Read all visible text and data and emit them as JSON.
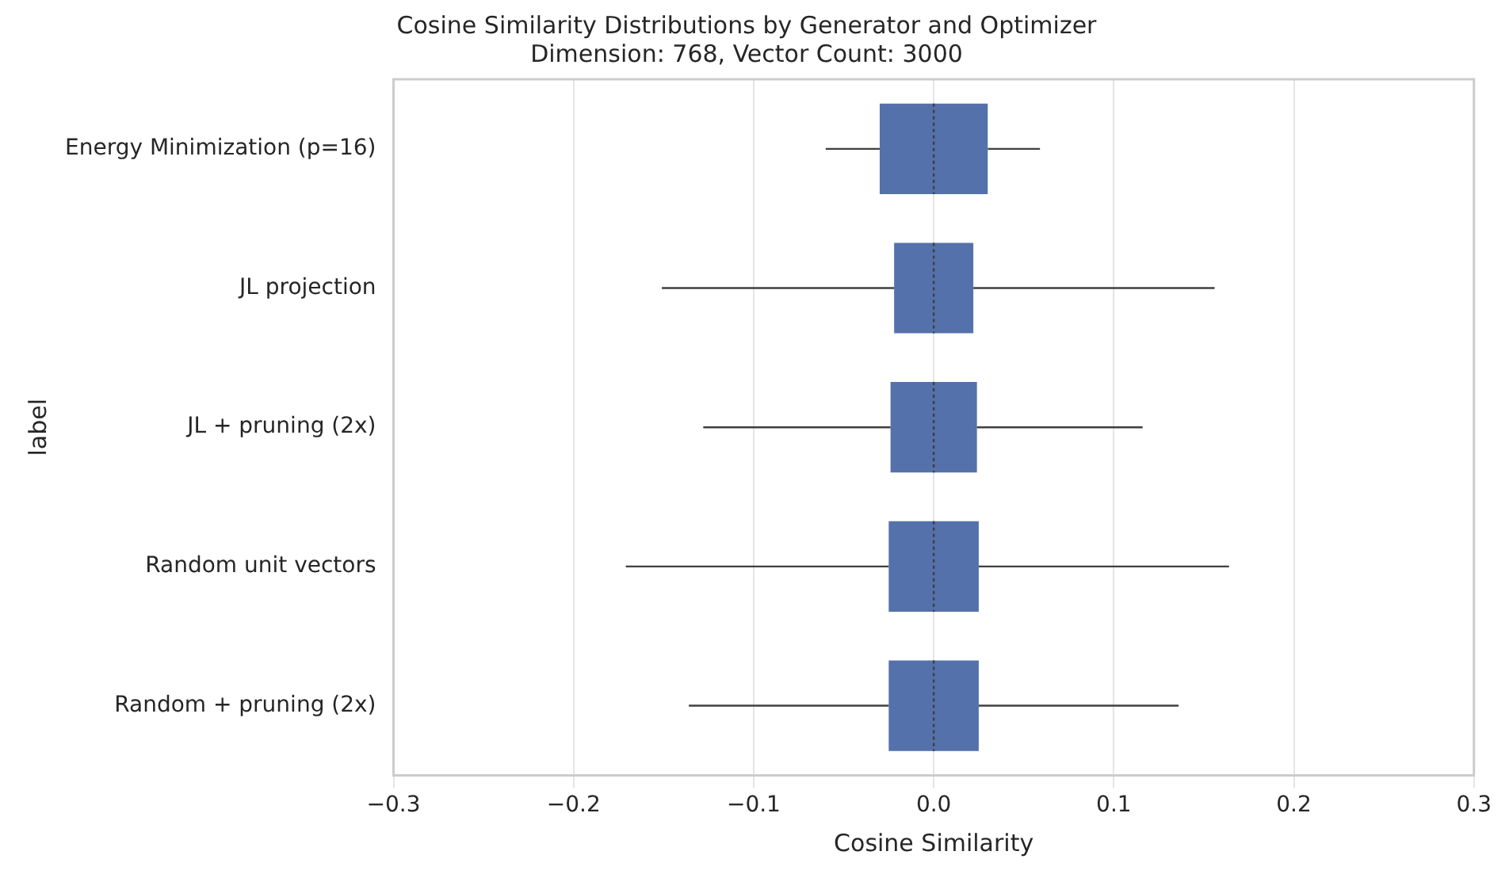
{
  "chart_data": {
    "type": "box",
    "orientation": "horizontal",
    "title": "Cosine Similarity Distributions by Generator and Optimizer",
    "subtitle": "Dimension: 768, Vector Count: 3000",
    "xlabel": "Cosine Similarity",
    "ylabel": "label",
    "categories": [
      "Energy Minimization (p=16)",
      "JL projection",
      "JL + pruning (2x)",
      "Random unit vectors",
      "Random + pruning (2x)"
    ],
    "color": "#5471ab",
    "boxes": [
      {
        "low": -0.06,
        "q1": -0.03,
        "median": 0.0,
        "q3": 0.03,
        "high": 0.059
      },
      {
        "low": -0.151,
        "q1": -0.022,
        "median": 0.0,
        "q3": 0.022,
        "high": 0.156
      },
      {
        "low": -0.128,
        "q1": -0.024,
        "median": 0.0,
        "q3": 0.024,
        "high": 0.116
      },
      {
        "low": -0.171,
        "q1": -0.025,
        "median": 0.0,
        "q3": 0.025,
        "high": 0.164
      },
      {
        "low": -0.136,
        "q1": -0.025,
        "median": 0.0,
        "q3": 0.025,
        "high": 0.136
      }
    ],
    "xlim": [
      -0.3,
      0.3
    ],
    "xticks": [
      {
        "value": -0.3,
        "label": "−0.3"
      },
      {
        "value": -0.2,
        "label": "−0.2"
      },
      {
        "value": -0.1,
        "label": "−0.1"
      },
      {
        "value": 0,
        "label": "0.0"
      },
      {
        "value": 0.1,
        "label": "0.1"
      },
      {
        "value": 0.2,
        "label": "0.2"
      },
      {
        "value": 0.3,
        "label": "0.3"
      }
    ],
    "grid": "x",
    "legend": false
  }
}
